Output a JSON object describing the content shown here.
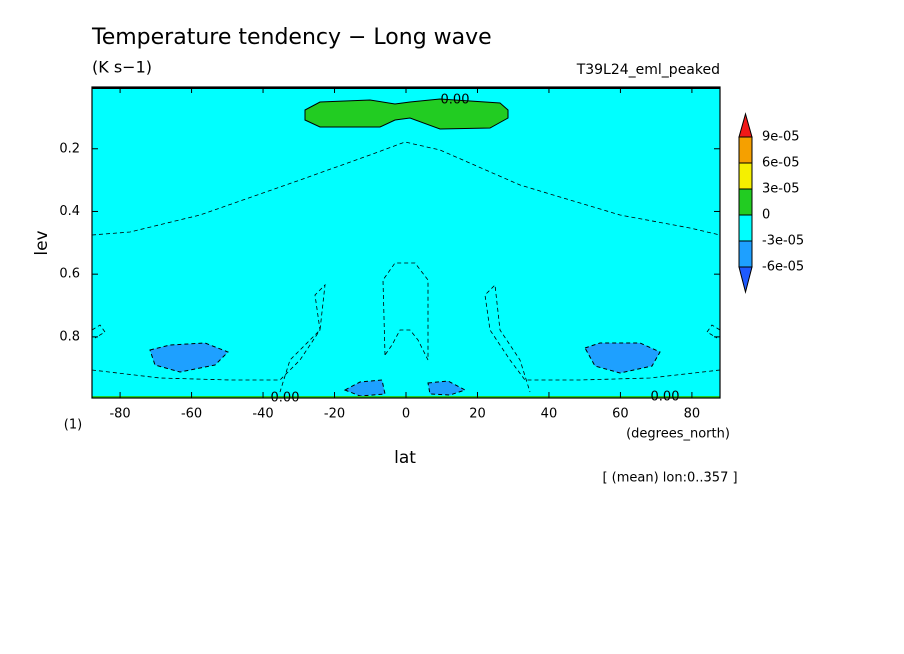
{
  "chart_data": {
    "type": "contour",
    "title": "Temperature tendency − Long wave",
    "subtitle": "(K s−1)",
    "run_label": "T39L24_eml_peaked",
    "x_label": "lat",
    "x_units": "(degrees_north)",
    "y_label": "lev",
    "y_units": "(1)",
    "footnote": "[ (mean) lon:0..357 ]",
    "xlim": [
      -87.86,
      87.86
    ],
    "xticks": [
      -80,
      -60,
      -40,
      -20,
      0,
      20,
      40,
      60,
      80
    ],
    "ylim": [
      0.995,
      0.003
    ],
    "yticks": [
      0.2,
      0.4,
      0.6,
      0.8
    ],
    "levels": [
      {
        "value": 9e-05,
        "label": "9e-05"
      },
      {
        "value": 6e-05,
        "label": "6e-05"
      },
      {
        "value": 3e-05,
        "label": "3e-05"
      },
      0,
      {
        "value": -3e-05,
        "label": "-3e-05"
      },
      {
        "value": -6e-05,
        "label": "-6e-05"
      }
    ],
    "level_colors": [
      "#f01818",
      "#f5a000",
      "#f5f000",
      "#22cc22",
      "#00ffff",
      "#1ea0ff",
      "#1e5aff"
    ],
    "contour_labels": [
      {
        "value": 0,
        "label": "0.00"
      },
      {
        "value": 0,
        "label": "0.00"
      },
      {
        "value": 0,
        "label": "0.00"
      }
    ]
  }
}
